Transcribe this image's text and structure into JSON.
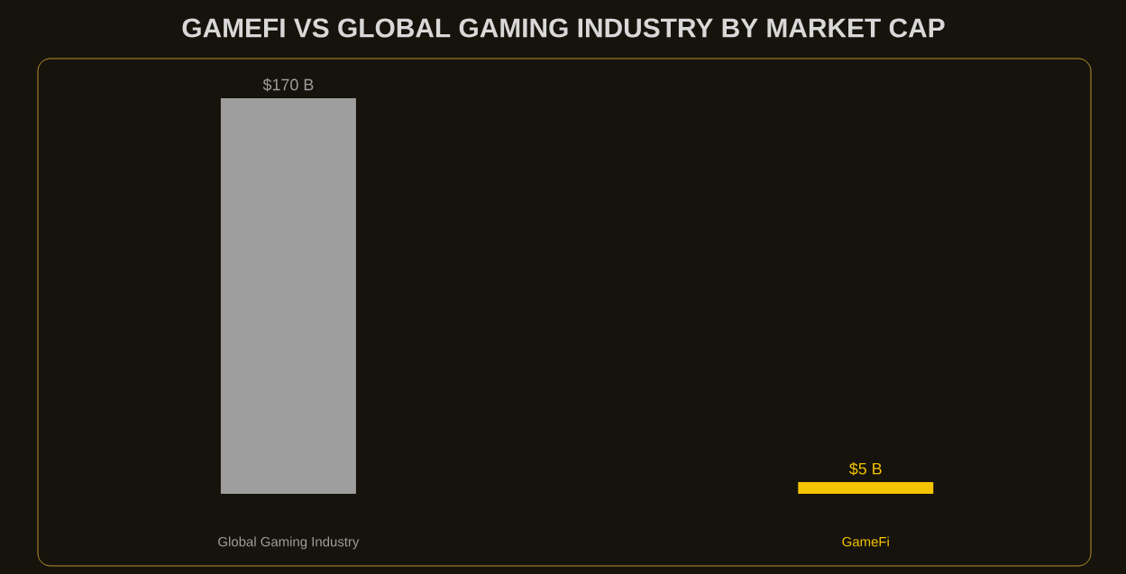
{
  "chart_data": {
    "type": "bar",
    "title": "GAMEFI VS GLOBAL GAMING INDUSTRY BY MARKET CAP",
    "categories": [
      "Global Gaming Industry",
      "GameFi"
    ],
    "values": [
      170,
      5
    ],
    "value_labels": [
      "$170 B",
      "$5 B"
    ],
    "colors": [
      "#9e9e9e",
      "#f5c400"
    ]
  }
}
